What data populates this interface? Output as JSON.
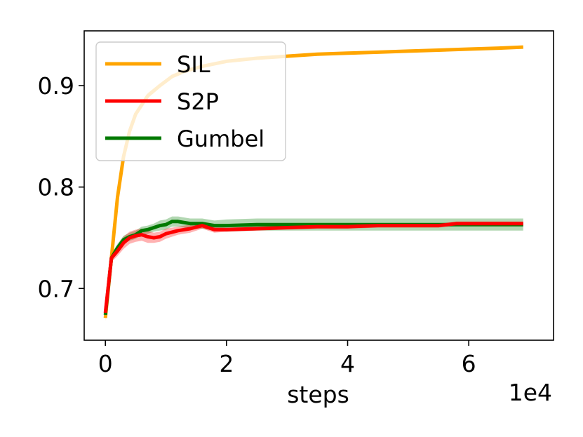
{
  "chart_data": {
    "type": "line",
    "title": "",
    "xlabel": "steps",
    "ylabel": "",
    "x_offset_label": "1e4",
    "xlim": [
      -0.35,
      7.4
    ],
    "ylim": [
      0.649,
      0.954
    ],
    "xticks": [
      0,
      2,
      4,
      6
    ],
    "xtick_labels": [
      "0",
      "2",
      "4",
      "6"
    ],
    "yticks": [
      0.7,
      0.8,
      0.9
    ],
    "ytick_labels": [
      "0.7",
      "0.8",
      "0.9"
    ],
    "grid": false,
    "legend_position": "top-left",
    "series": [
      {
        "name": "SIL",
        "color": "#ffa500",
        "x": [
          0,
          0.1,
          0.2,
          0.3,
          0.4,
          0.5,
          0.7,
          0.9,
          1.1,
          1.3,
          1.6,
          2.0,
          2.5,
          3.0,
          3.5,
          4.0,
          4.5,
          5.0,
          5.5,
          6.0,
          6.5,
          6.9
        ],
        "y": [
          0.671,
          0.73,
          0.79,
          0.83,
          0.855,
          0.872,
          0.89,
          0.9,
          0.909,
          0.914,
          0.919,
          0.924,
          0.927,
          0.929,
          0.931,
          0.932,
          0.933,
          0.934,
          0.935,
          0.936,
          0.937,
          0.938
        ],
        "band": [
          0.003,
          0.004,
          0.005,
          0.004,
          0.004,
          0.003,
          0.003,
          0.002,
          0.002,
          0.002,
          0.001,
          0.001,
          0.001,
          0.001,
          0.001,
          0.001,
          0.001,
          0.001,
          0.001,
          0.001,
          0.001,
          0.001
        ]
      },
      {
        "name": "S2P",
        "color": "#ff0000",
        "x": [
          0,
          0.1,
          0.2,
          0.3,
          0.4,
          0.5,
          0.6,
          0.7,
          0.8,
          0.9,
          1.0,
          1.2,
          1.4,
          1.6,
          1.8,
          2.0,
          2.5,
          3.0,
          3.5,
          4.0,
          4.5,
          5.0,
          5.5,
          5.8,
          6.0,
          6.5,
          6.9
        ],
        "y": [
          0.676,
          0.73,
          0.737,
          0.745,
          0.75,
          0.752,
          0.753,
          0.751,
          0.75,
          0.751,
          0.754,
          0.757,
          0.759,
          0.762,
          0.758,
          0.758,
          0.759,
          0.76,
          0.761,
          0.761,
          0.762,
          0.762,
          0.762,
          0.764,
          0.764,
          0.764,
          0.764
        ],
        "band": [
          0.003,
          0.004,
          0.005,
          0.006,
          0.006,
          0.006,
          0.006,
          0.006,
          0.005,
          0.005,
          0.005,
          0.004,
          0.004,
          0.003,
          0.003,
          0.002,
          0.002,
          0.002,
          0.002,
          0.002,
          0.002,
          0.002,
          0.002,
          0.002,
          0.002,
          0.002,
          0.002
        ]
      },
      {
        "name": "Gumbel",
        "color": "#007a00",
        "x": [
          0,
          0.1,
          0.2,
          0.3,
          0.4,
          0.5,
          0.6,
          0.7,
          0.8,
          0.9,
          1.0,
          1.1,
          1.2,
          1.4,
          1.6,
          1.8,
          2.0,
          2.5,
          3.0,
          3.5,
          4.0,
          4.5,
          5.0,
          5.5,
          6.0,
          6.5,
          6.9
        ],
        "y": [
          0.674,
          0.73,
          0.74,
          0.748,
          0.751,
          0.753,
          0.757,
          0.758,
          0.76,
          0.762,
          0.763,
          0.766,
          0.766,
          0.764,
          0.764,
          0.762,
          0.762,
          0.763,
          0.763,
          0.763,
          0.763,
          0.763,
          0.763,
          0.763,
          0.763,
          0.763,
          0.763
        ],
        "band": [
          0.003,
          0.004,
          0.004,
          0.004,
          0.004,
          0.004,
          0.004,
          0.004,
          0.004,
          0.005,
          0.005,
          0.005,
          0.005,
          0.005,
          0.005,
          0.005,
          0.006,
          0.006,
          0.006,
          0.006,
          0.006,
          0.006,
          0.006,
          0.006,
          0.006,
          0.006,
          0.006
        ]
      }
    ]
  }
}
